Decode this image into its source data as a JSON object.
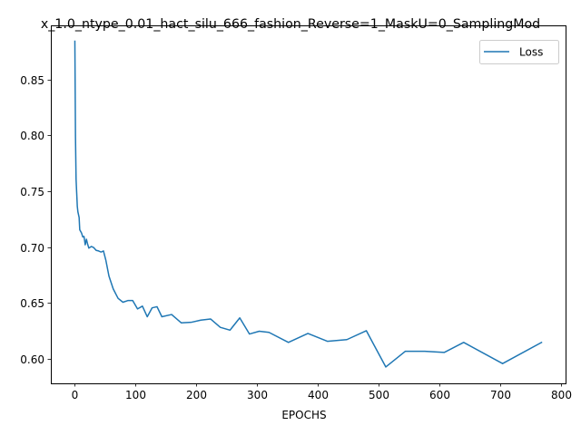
{
  "chart_data": {
    "type": "line",
    "title": "x_1.0_ntype_0.01_hact_silu_666_fashion_Reverse=1_MaskU=0_SamplingMod",
    "xlabel": "EPOCHS",
    "ylabel": "",
    "xlim": [
      -38.5,
      807.5
    ],
    "ylim": [
      0.5778,
      0.8987
    ],
    "xticks": [
      0,
      100,
      200,
      300,
      400,
      500,
      600,
      700,
      800
    ],
    "xtick_labels": [
      "0",
      "100",
      "200",
      "300",
      "400",
      "500",
      "600",
      "700",
      "800"
    ],
    "yticks": [
      0.6,
      0.65,
      0.7,
      0.75,
      0.8,
      0.85
    ],
    "ytick_labels": [
      "0.60",
      "0.65",
      "0.70",
      "0.75",
      "0.80",
      "0.85"
    ],
    "grid": false,
    "legend_position": "top-right",
    "series": [
      {
        "name": "Loss",
        "color": "#1f77b4",
        "x": [
          1,
          2,
          3,
          4,
          5,
          6,
          8,
          9,
          10,
          12,
          14,
          16,
          18,
          20,
          22,
          24,
          28,
          32,
          36,
          40,
          44,
          48,
          52,
          57,
          64,
          72,
          80,
          88,
          96,
          104,
          112,
          120,
          128,
          136,
          144,
          160,
          176,
          192,
          208,
          224,
          240,
          256,
          272,
          288,
          304,
          320,
          352,
          384,
          416,
          448,
          480,
          512,
          544,
          576,
          608,
          640,
          704,
          768
        ],
        "y": [
          0.8845,
          0.7995,
          0.7605,
          0.7485,
          0.7365,
          0.7315,
          0.7265,
          0.7155,
          0.7145,
          0.7125,
          0.709,
          0.7095,
          0.702,
          0.707,
          0.7025,
          0.699,
          0.7005,
          0.6995,
          0.697,
          0.6965,
          0.6955,
          0.6965,
          0.688,
          0.674,
          0.6625,
          0.654,
          0.6505,
          0.652,
          0.652,
          0.6445,
          0.647,
          0.6375,
          0.6455,
          0.6465,
          0.6375,
          0.6395,
          0.632,
          0.6325,
          0.6345,
          0.6355,
          0.628,
          0.6255,
          0.6365,
          0.622,
          0.6245,
          0.6235,
          0.6145,
          0.6225,
          0.6155,
          0.617,
          0.625,
          0.5925,
          0.6065,
          0.6065,
          0.6055,
          0.6145,
          0.5955,
          0.6145
        ]
      }
    ]
  }
}
